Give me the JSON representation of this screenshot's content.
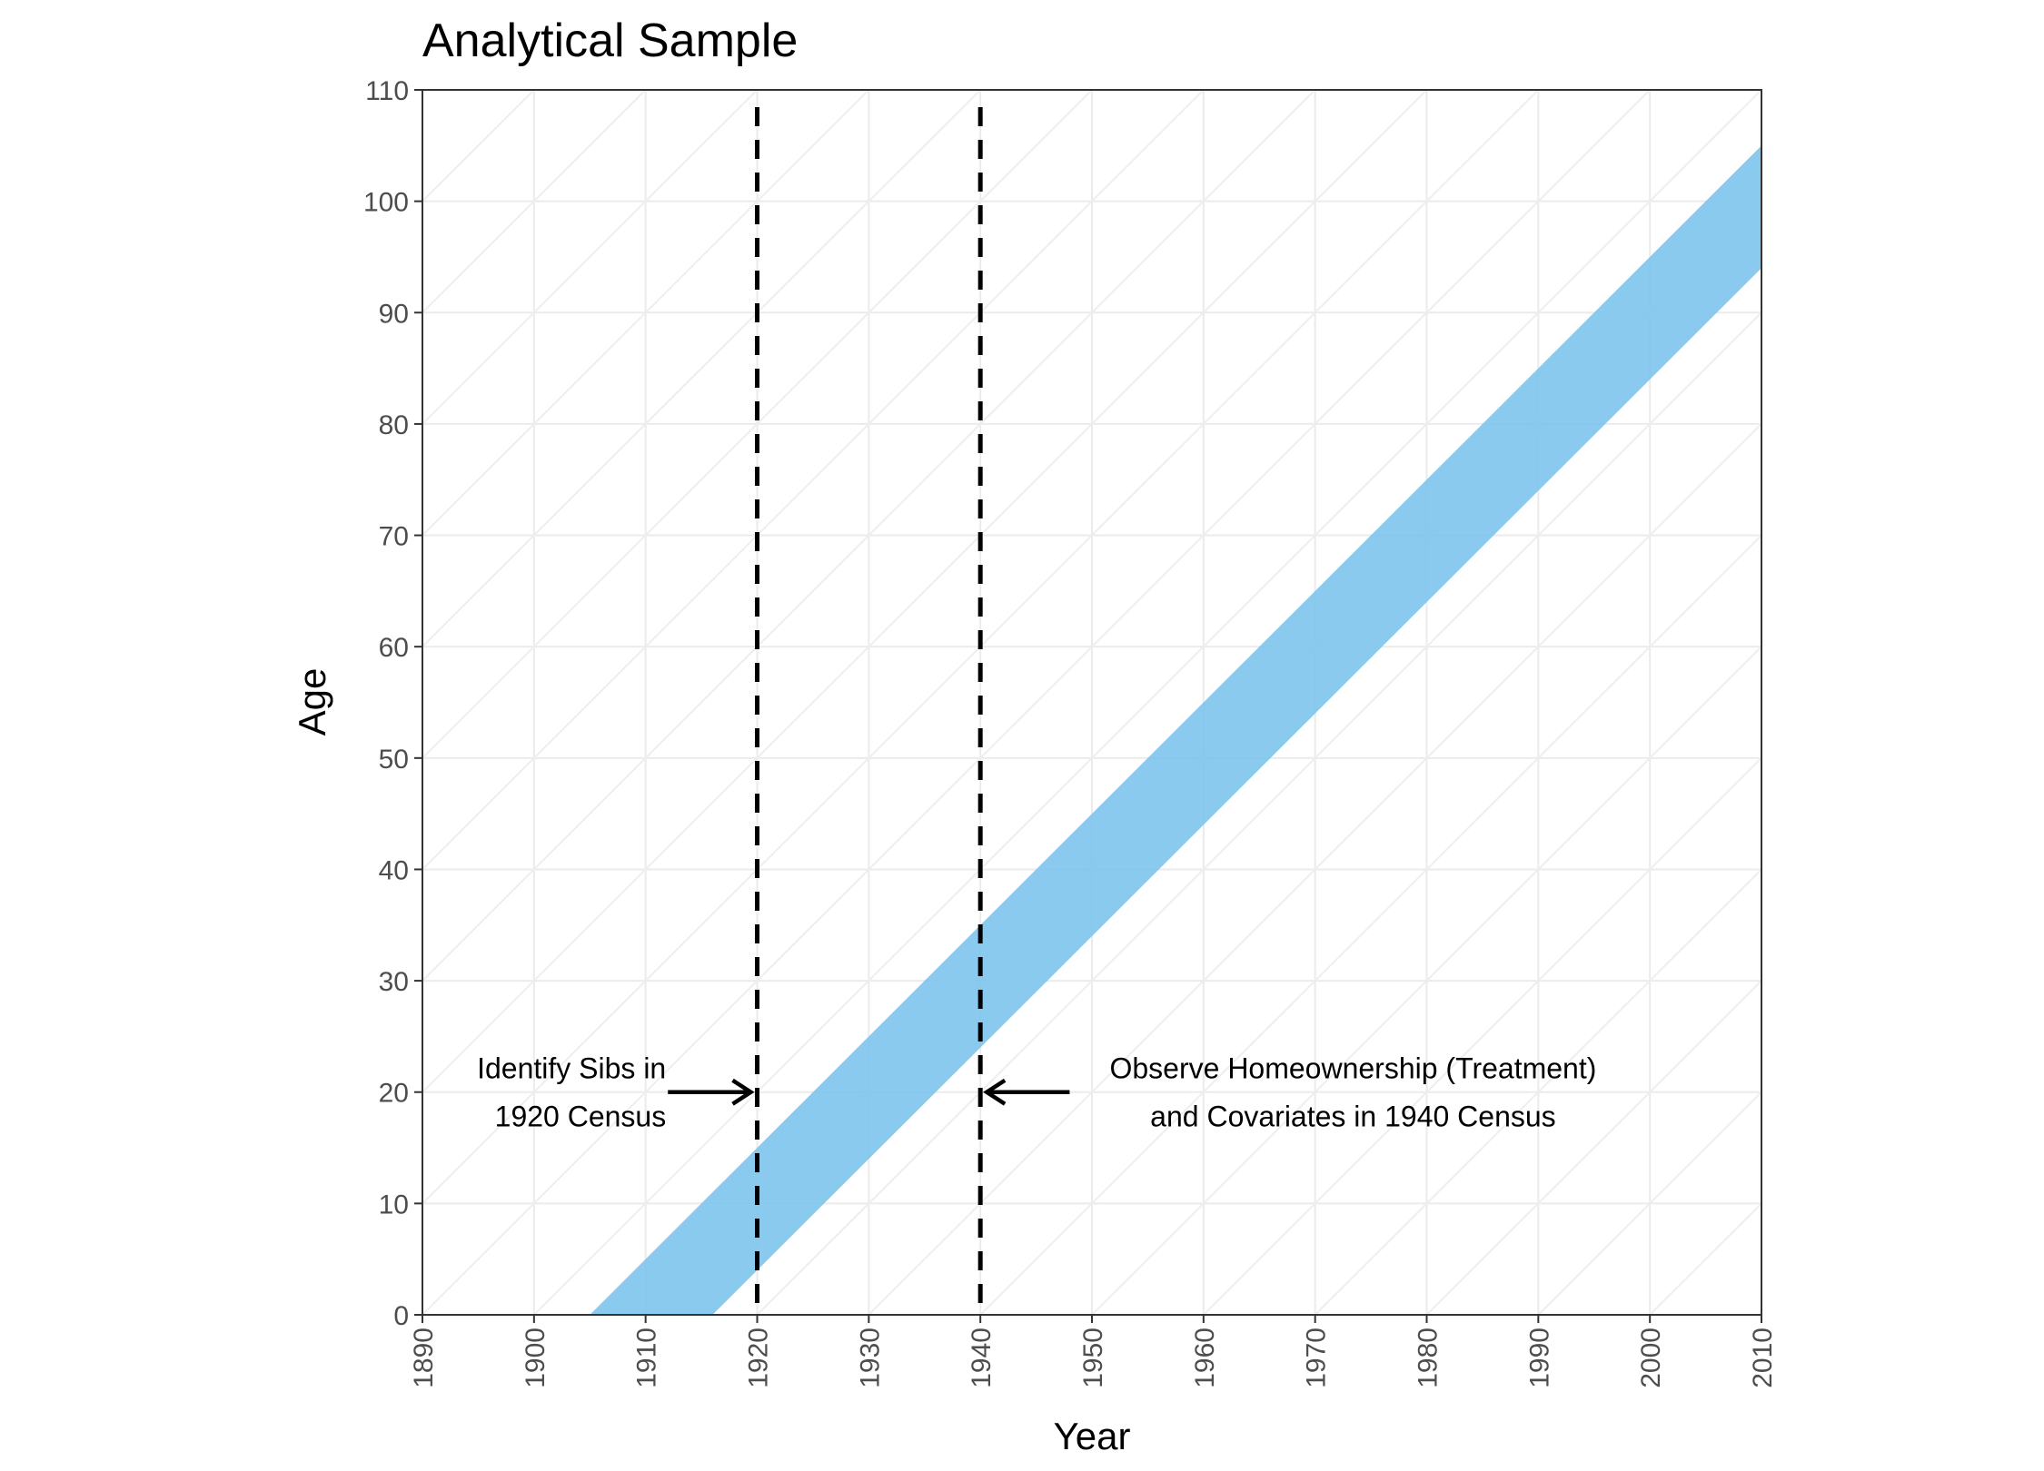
{
  "chart_data": {
    "type": "area",
    "title": "Analytical Sample",
    "xlabel": "Year",
    "ylabel": "Age",
    "xlim": [
      1890,
      2010
    ],
    "ylim": [
      0,
      110
    ],
    "x_ticks": [
      1890,
      1900,
      1910,
      1920,
      1930,
      1940,
      1950,
      1960,
      1970,
      1980,
      1990,
      2000,
      2010
    ],
    "y_ticks": [
      0,
      10,
      20,
      30,
      40,
      50,
      60,
      70,
      80,
      90,
      100,
      110
    ],
    "grid": true,
    "diagonal_lexis_lines": true,
    "series": [
      {
        "birth_cohort_range": [
          1905,
          1916
        ],
        "color": "#7dc4ec",
        "upper_edge": [
          [
            1905,
            0
          ],
          [
            2010,
            105
          ]
        ],
        "lower_edge": [
          [
            1916,
            0
          ],
          [
            2010,
            94
          ]
        ]
      }
    ],
    "vlines": [
      {
        "x": 1920,
        "style": "dashed"
      },
      {
        "x": 1940,
        "style": "dashed"
      }
    ],
    "annotations": [
      {
        "lines": [
          "Identify Sibs in",
          "1920 Census"
        ],
        "arrow_to": [
          1920,
          20
        ],
        "arrow_from": [
          1912,
          20
        ],
        "align": "right"
      },
      {
        "lines": [
          "Observe Homeownership (Treatment)",
          "and Covariates in 1940 Census"
        ],
        "arrow_to": [
          1940,
          20
        ],
        "arrow_from": [
          1948,
          20
        ],
        "align": "left"
      }
    ]
  }
}
